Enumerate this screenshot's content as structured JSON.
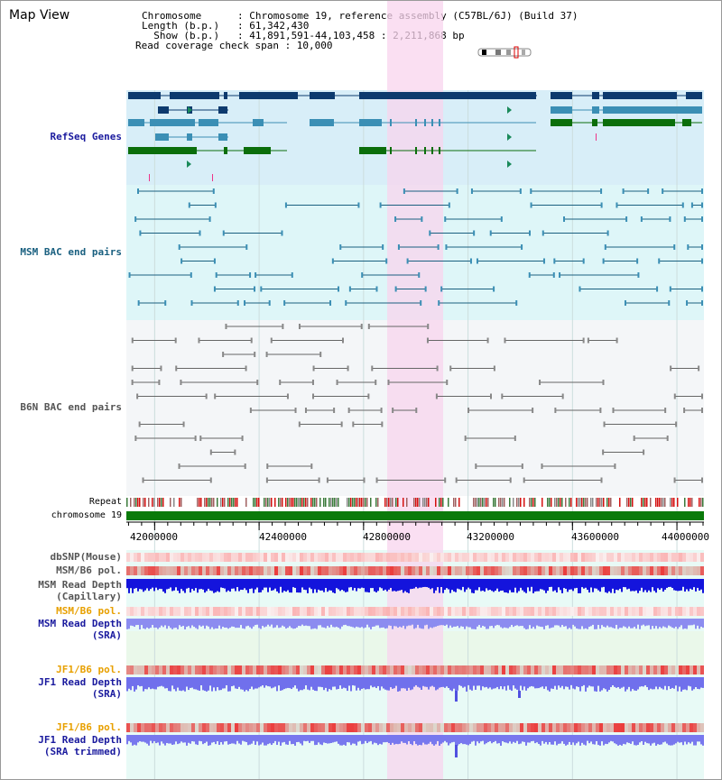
{
  "header": {
    "title": "Map View",
    "info_lines": [
      "Chromosome      : Chromosome 19, reference assembly (C57BL/6J) (Build 37)",
      "Length (b.p.)   : 61,342,430",
      "  Show (b.p.)   : 41,891,591-44,103,458 : 2,211,868 bp",
      "Read coverage check span : 10,000"
    ]
  },
  "tracks": {
    "refseq": "RefSeq Genes",
    "msm_bac": "MSM BAC end pairs",
    "b6n_bac": "B6N BAC end pairs",
    "repeat": "Repeat",
    "chromosome": "chromosome 19"
  },
  "axis": {
    "start": 41891591,
    "end": 44103458,
    "ticks": [
      "42000000",
      "42400000",
      "42800000",
      "43200000",
      "43600000",
      "44000000"
    ],
    "tick_values": [
      42000000,
      42400000,
      42800000,
      43200000,
      43600000,
      44000000
    ]
  },
  "lower_tracks": [
    {
      "lines": [
        "dbSNP(Mouse)"
      ],
      "color": "#555555"
    },
    {
      "lines": [
        "MSM/B6 pol."
      ],
      "color": "#555555"
    },
    {
      "lines": [
        "MSM Read Depth",
        "(Capillary)"
      ],
      "color": "#555555"
    },
    {
      "lines": [
        "MSM/B6 pol."
      ],
      "color": "#e8a000"
    },
    {
      "lines": [
        "MSM Read Depth",
        "(SRA)"
      ],
      "color": "#1a1a9e"
    },
    {
      "lines": [
        "JF1/B6 pol."
      ],
      "color": "#e8a000"
    },
    {
      "lines": [
        "JF1 Read Depth",
        "(SRA)"
      ],
      "color": "#1a1a9e"
    },
    {
      "lines": [
        "JF1/B6 pol."
      ],
      "color": "#e8a000"
    },
    {
      "lines": [
        "JF1 Read Depth",
        "(SRA trimmed)"
      ],
      "color": "#1a1a9e"
    }
  ],
  "colors": {
    "refseq_label": "#1a1a9e",
    "msm_label": "#1a6080",
    "b6n_label": "#555555",
    "highlight": "#f8d4ee",
    "chromosome_bar": "#0a7a0a",
    "refseq_bg": "#d8eef8",
    "msm_bg": "#def6f8",
    "b6n_bg": "#f4f6f8",
    "lower_bg": "#e8faf6"
  },
  "icons": {
    "ideogram": "chromosome-ideogram-icon"
  }
}
